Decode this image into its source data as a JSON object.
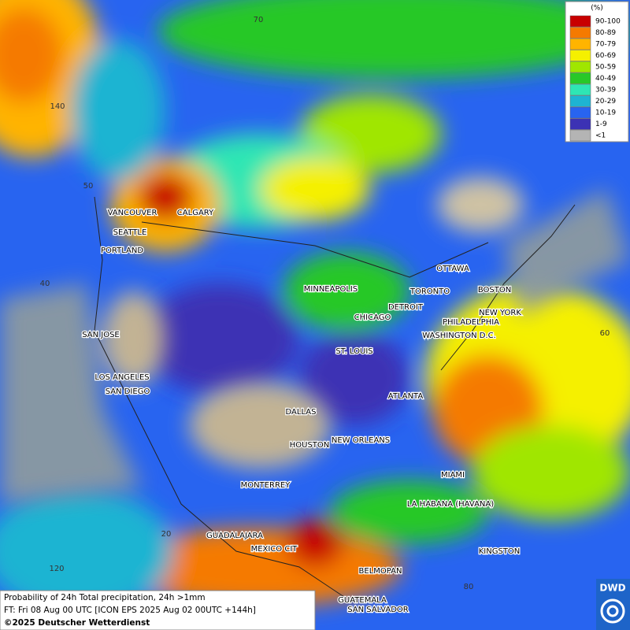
{
  "legend": {
    "title": "(%)",
    "items": [
      {
        "label": "90-100",
        "color": "#c80000"
      },
      {
        "label": "80-89",
        "color": "#f57a00"
      },
      {
        "label": "70-79",
        "color": "#ffb400"
      },
      {
        "label": "60-69",
        "color": "#f5f000"
      },
      {
        "label": "50-59",
        "color": "#a0e600"
      },
      {
        "label": "40-49",
        "color": "#28c828"
      },
      {
        "label": "30-39",
        "color": "#2ee6b4"
      },
      {
        "label": "20-29",
        "color": "#1eb4d2"
      },
      {
        "label": "10-19",
        "color": "#2864f0"
      },
      {
        "label": "1-9",
        "color": "#3c32b4"
      },
      {
        "label": "<1",
        "color": "#b4b4b4"
      }
    ]
  },
  "cities": [
    "VANCOUVER",
    "CALGARY",
    "SEATTLE",
    "PORTLAND",
    "MINNEAPOLIS",
    "OTTAWA",
    "TORONTO",
    "BOSTON",
    "DETROIT",
    "CHICAGO",
    "NEW YORK",
    "PHILADELPHIA",
    "WASHINGTON D.C.",
    "SAN JOSE",
    "ST. LOUIS",
    "LOS ANGELES",
    "SAN DIEGO",
    "ATLANTA",
    "DALLAS",
    "HOUSTON",
    "NEW ORLEANS",
    "MIAMI",
    "MONTERREY",
    "LA HABANA (HAVANA)",
    "GUADALAJARA",
    "MEXICO CIT",
    "KINGSTON",
    "BELMOPAN",
    "GUATEMALA",
    "SAN SALVADOR"
  ],
  "grid_labels": [
    "70",
    "140",
    "50",
    "40",
    "60",
    "20",
    "120",
    "80"
  ],
  "footer": {
    "line1": "Probability of 24h Total precipitation, 24h >1mm",
    "line2": "FT: Fri 08 Aug 00 UTC [ICON EPS 2025 Aug 02 00UTC +144h]",
    "line3": "©2025 Deutscher Wetterdienst"
  },
  "logo": "DWD"
}
